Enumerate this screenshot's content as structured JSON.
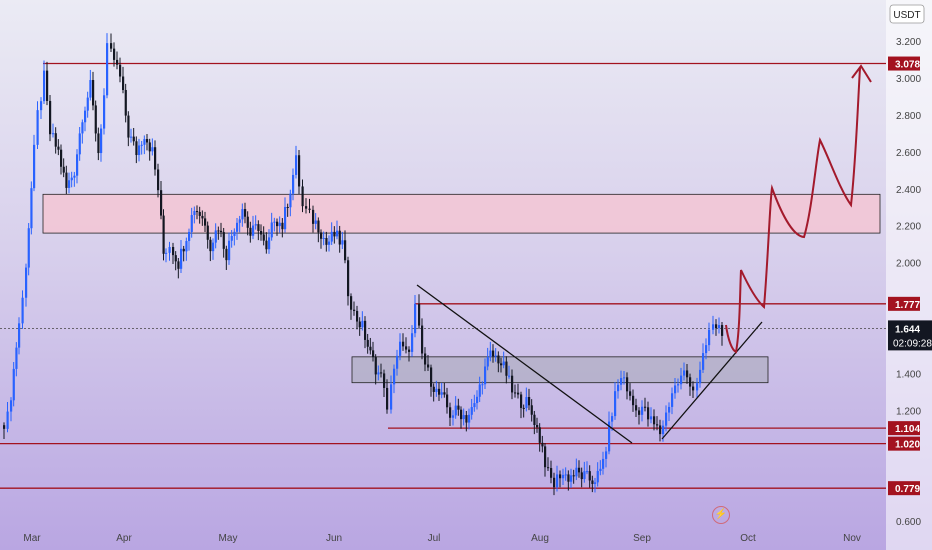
{
  "chart_data": {
    "type": "candlestick",
    "unit": "USDT",
    "ylim": [
      0.52,
      3.38
    ],
    "y_ticks": [
      "3.200",
      "3.000",
      "2.800",
      "2.600",
      "2.400",
      "2.200",
      "2.000",
      "1.400",
      "1.200",
      "0.600"
    ],
    "x_ticks": [
      "Mar",
      "Apr",
      "May",
      "Jun",
      "Jul",
      "Aug",
      "Sep",
      "Oct",
      "Nov"
    ],
    "current_price": "1.644",
    "countdown": "02:09:28",
    "levels": [
      {
        "label": "3.078",
        "value": 3.078
      },
      {
        "label": "1.777",
        "value": 1.777
      },
      {
        "label": "1.104",
        "value": 1.104
      },
      {
        "label": "1.020",
        "value": 1.02
      },
      {
        "label": "0.779",
        "value": 0.779
      }
    ],
    "zones": [
      {
        "name": "supply",
        "low": 2.16,
        "high": 2.37,
        "color": "#f3c6d3"
      },
      {
        "name": "support",
        "low": 1.35,
        "high": 1.49,
        "color": "#b4b0c8"
      }
    ],
    "colors": {
      "up": "#2962ff",
      "down": "#131722",
      "level": "#a3121f",
      "badge": "#a3121f",
      "projection": "#a31a2c"
    }
  }
}
